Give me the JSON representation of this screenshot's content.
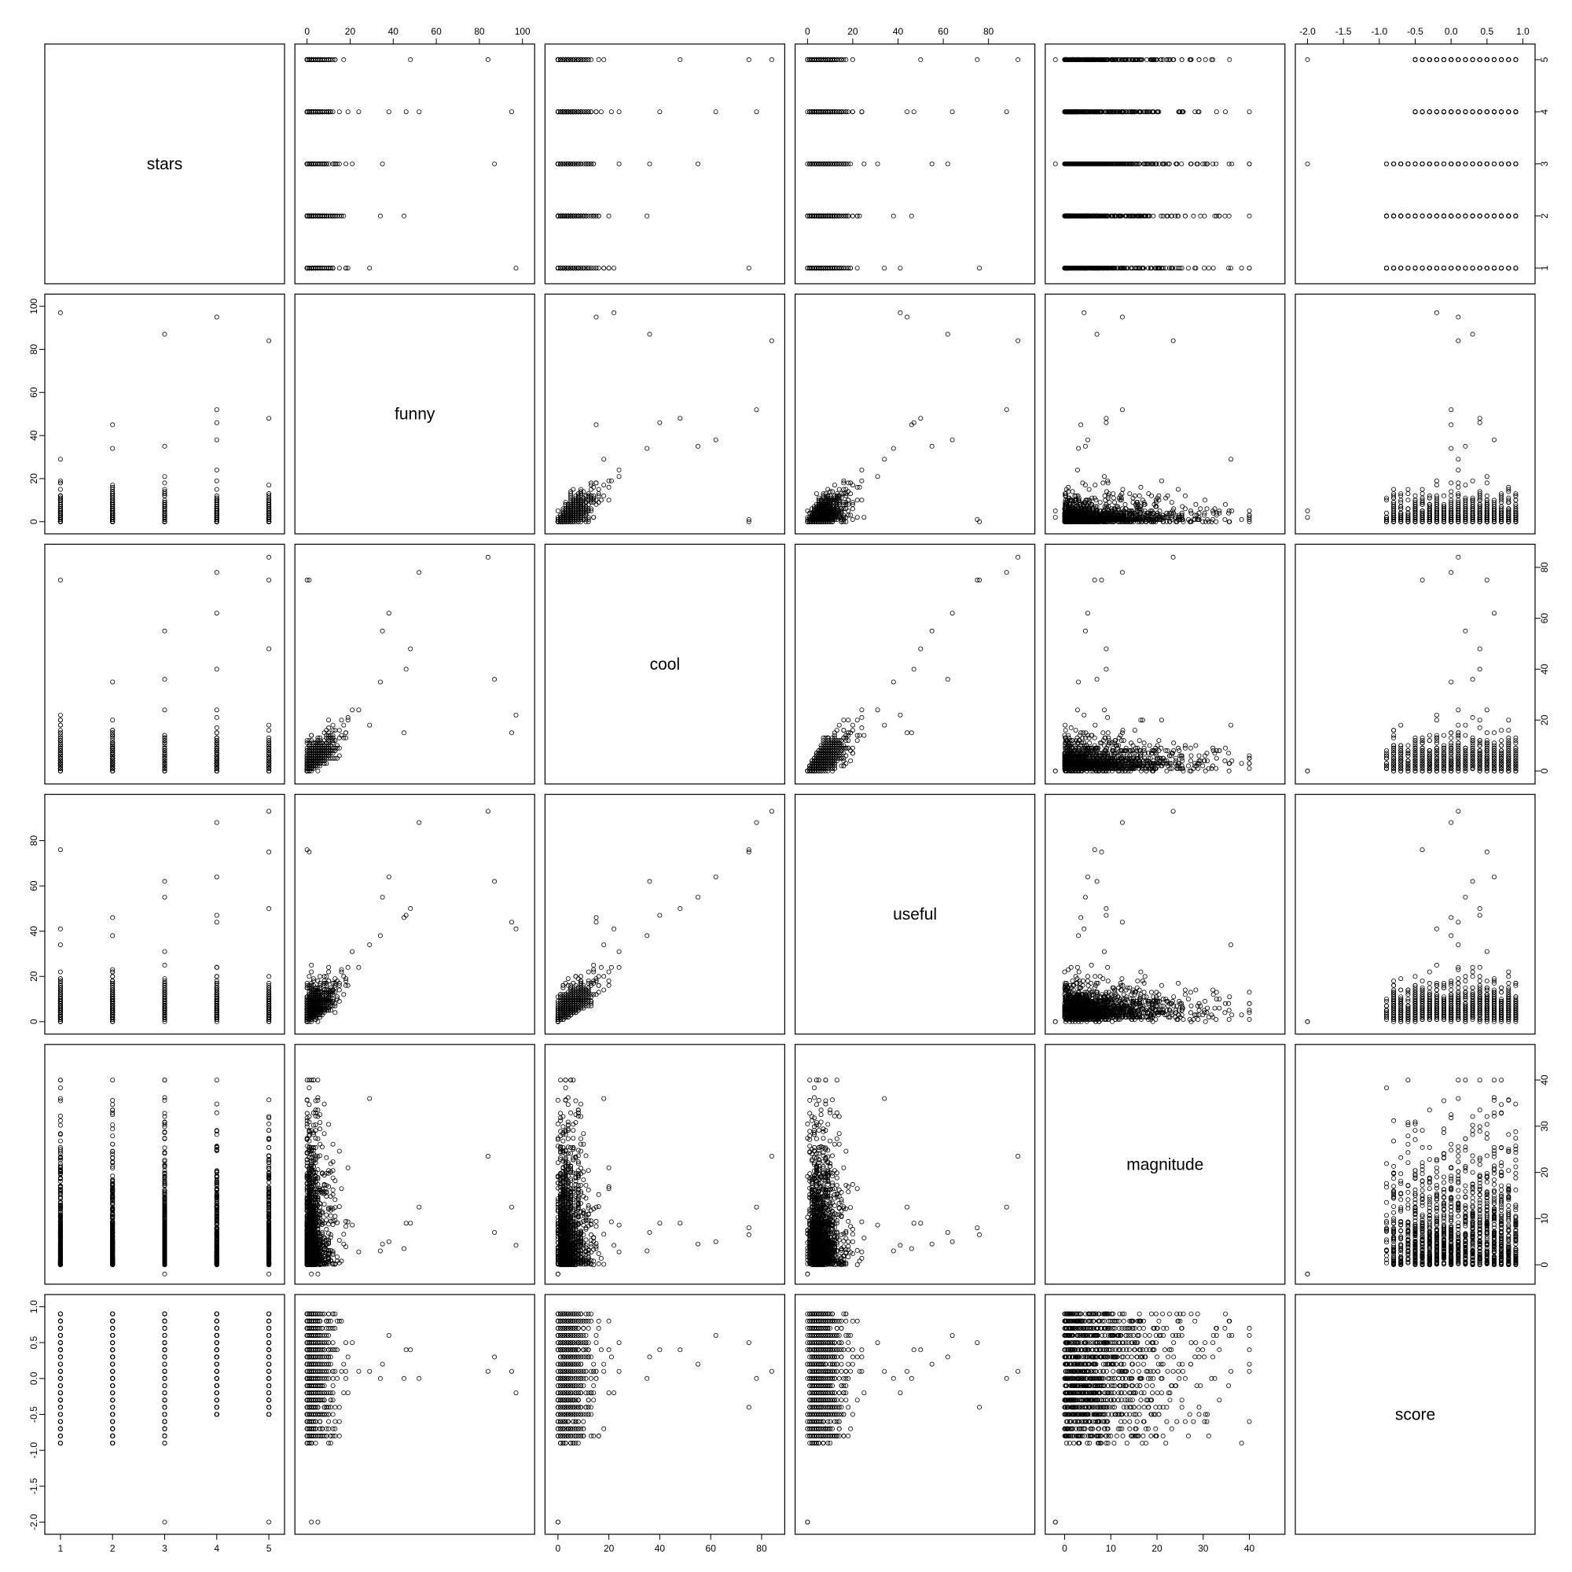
{
  "chart_data": {
    "type": "scatter",
    "subtype": "scatterplot-matrix",
    "title": "",
    "grid": false,
    "variables": [
      {
        "name": "stars",
        "range": [
          0.85,
          5.15
        ],
        "ticks": [
          1,
          2,
          3,
          4,
          5
        ],
        "tick_labels": [
          "1",
          "2",
          "3",
          "4",
          "5"
        ]
      },
      {
        "name": "funny",
        "range": [
          -2,
          102
        ],
        "ticks": [
          0,
          20,
          40,
          60,
          80,
          100
        ],
        "tick_labels": [
          "0",
          "20",
          "40",
          "60",
          "80",
          "100"
        ]
      },
      {
        "name": "cool",
        "range": [
          -2,
          86
        ],
        "ticks": [
          0,
          20,
          40,
          60,
          80
        ],
        "tick_labels": [
          "0",
          "20",
          "40",
          "60",
          "80"
        ]
      },
      {
        "name": "useful",
        "range": [
          -2,
          97
        ],
        "ticks": [
          0,
          20,
          40,
          60,
          80
        ],
        "tick_labels": [
          "0",
          "20",
          "40",
          "60",
          "80"
        ]
      },
      {
        "name": "magnitude",
        "range": [
          -2.5,
          46
        ],
        "ticks": [
          0,
          10,
          20,
          30,
          40
        ],
        "tick_labels": [
          "0",
          "10",
          "20",
          "30",
          "40"
        ]
      },
      {
        "name": "score",
        "range": [
          -2.06,
          1.06
        ],
        "ticks": [
          -2.0,
          -1.5,
          -1.0,
          -0.5,
          0.0,
          0.5,
          1.0
        ],
        "tick_labels": [
          "-2.0",
          "-1.5",
          "-1.0",
          "-0.5",
          "0.0",
          "0.5",
          "1.0"
        ]
      }
    ],
    "axis_labels_top_for_columns": [
      "funny",
      "useful",
      "score"
    ],
    "axis_labels_bottom_for_columns": [
      "stars",
      "cool",
      "magnitude"
    ],
    "axis_labels_left_for_rows": [
      "funny",
      "useful",
      "score"
    ],
    "axis_labels_right_for_rows": [
      "stars",
      "cool",
      "magnitude"
    ],
    "outliers": [
      {
        "stars": 1,
        "funny": 97,
        "cool": 22,
        "useful": 41,
        "magnitude": 4.2,
        "score": -0.2
      },
      {
        "stars": 4,
        "funny": 95,
        "cool": 15,
        "useful": 44,
        "magnitude": 12.5,
        "score": 0.1
      },
      {
        "stars": 3,
        "funny": 87,
        "cool": 36,
        "useful": 62,
        "magnitude": 7.0,
        "score": 0.3
      },
      {
        "stars": 5,
        "funny": 84,
        "cool": 84,
        "useful": 93,
        "magnitude": 23.5,
        "score": 0.1
      },
      {
        "stars": 4,
        "funny": 52,
        "cool": 78,
        "useful": 88,
        "magnitude": 12.5,
        "score": 0.0
      },
      {
        "stars": 1,
        "funny": 0,
        "cool": 75,
        "useful": 76,
        "magnitude": 6.5,
        "score": -0.4
      },
      {
        "stars": 5,
        "funny": 1,
        "cool": 75,
        "useful": 75,
        "magnitude": 8.0,
        "score": 0.5
      },
      {
        "stars": 3,
        "funny": 2,
        "cool": 0,
        "useful": 0,
        "magnitude": -2.0,
        "score": -2.0
      },
      {
        "stars": 5,
        "funny": 5,
        "cool": 0,
        "useful": 0,
        "magnitude": -2.0,
        "score": -2.0
      },
      {
        "stars": 4,
        "funny": 46,
        "cool": 40,
        "useful": 47,
        "magnitude": 9.0,
        "score": 0.4
      },
      {
        "stars": 5,
        "funny": 48,
        "cool": 48,
        "useful": 50,
        "magnitude": 9.0,
        "score": 0.4
      },
      {
        "stars": 4,
        "funny": 38,
        "cool": 62,
        "useful": 64,
        "magnitude": 5.0,
        "score": 0.6
      },
      {
        "stars": 3,
        "funny": 35,
        "cool": 55,
        "useful": 55,
        "magnitude": 4.5,
        "score": 0.2
      },
      {
        "stars": 2,
        "funny": 34,
        "cool": 35,
        "useful": 38,
        "magnitude": 3.0,
        "score": 0.0
      },
      {
        "stars": 2,
        "funny": 45,
        "cool": 15,
        "useful": 46,
        "magnitude": 3.5,
        "score": 0.0
      },
      {
        "stars": 1,
        "funny": 29,
        "cool": 18,
        "useful": 34,
        "magnitude": 36.0,
        "score": 0.1
      }
    ],
    "note_on_density": "bulk of points concentrated near 0 for funny, cool, useful; magnitude mostly 0-30"
  }
}
